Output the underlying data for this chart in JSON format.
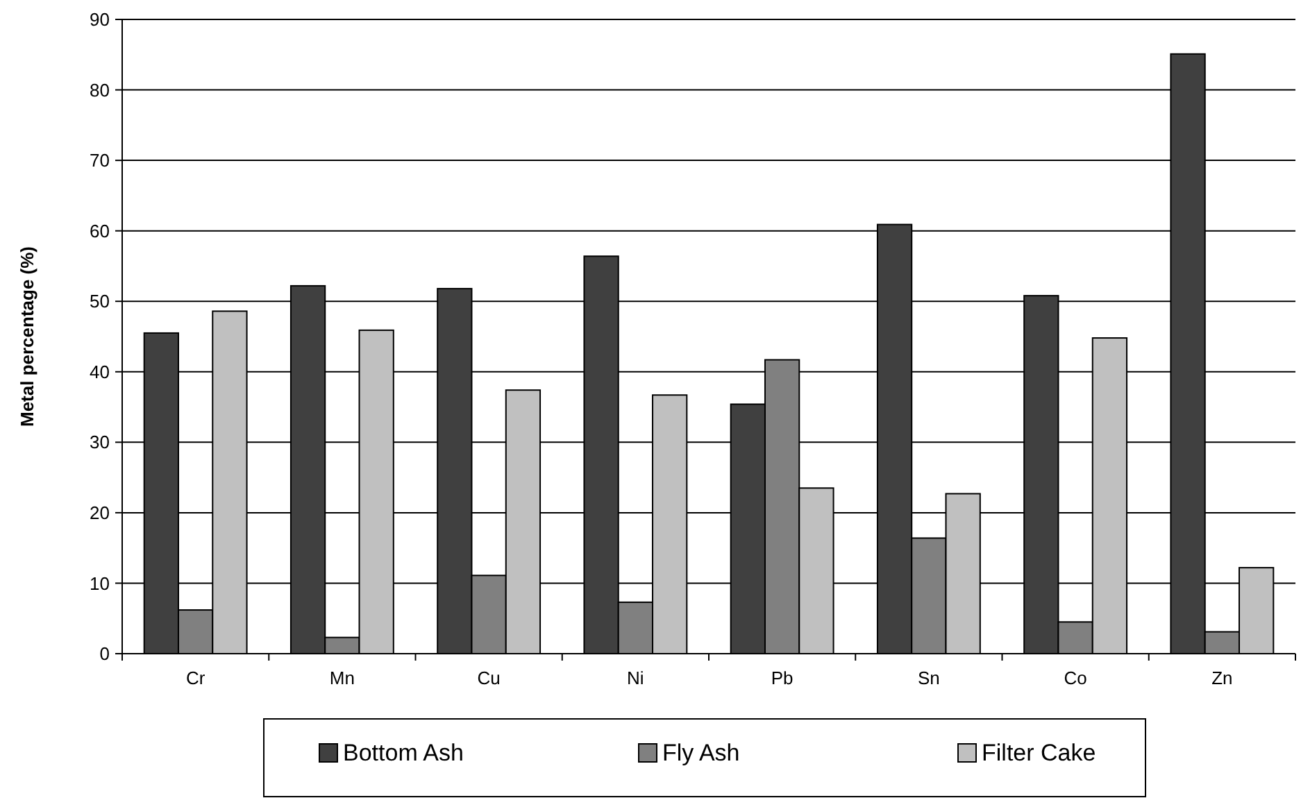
{
  "chart_data": {
    "type": "bar",
    "ylabel": "Metal percentage (%)",
    "categories": [
      "Cr",
      "Mn",
      "Cu",
      "Ni",
      "Pb",
      "Sn",
      "Co",
      "Zn"
    ],
    "series": [
      {
        "name": "Bottom Ash",
        "color": "#404040",
        "values": [
          45.5,
          52.2,
          51.8,
          56.4,
          35.4,
          60.9,
          50.8,
          85.1
        ]
      },
      {
        "name": "Fly Ash",
        "color": "#808080",
        "values": [
          6.2,
          2.3,
          11.1,
          7.3,
          41.7,
          16.4,
          4.5,
          3.1
        ]
      },
      {
        "name": "Filter Cake",
        "color": "#c0c0c0",
        "values": [
          48.6,
          45.9,
          37.4,
          36.7,
          23.5,
          22.7,
          44.8,
          12.2
        ]
      }
    ],
    "ylim": [
      0,
      90
    ],
    "yticks": [
      0,
      10,
      20,
      30,
      40,
      50,
      60,
      70,
      80,
      90
    ],
    "grid": "y",
    "legend": "bottom"
  }
}
